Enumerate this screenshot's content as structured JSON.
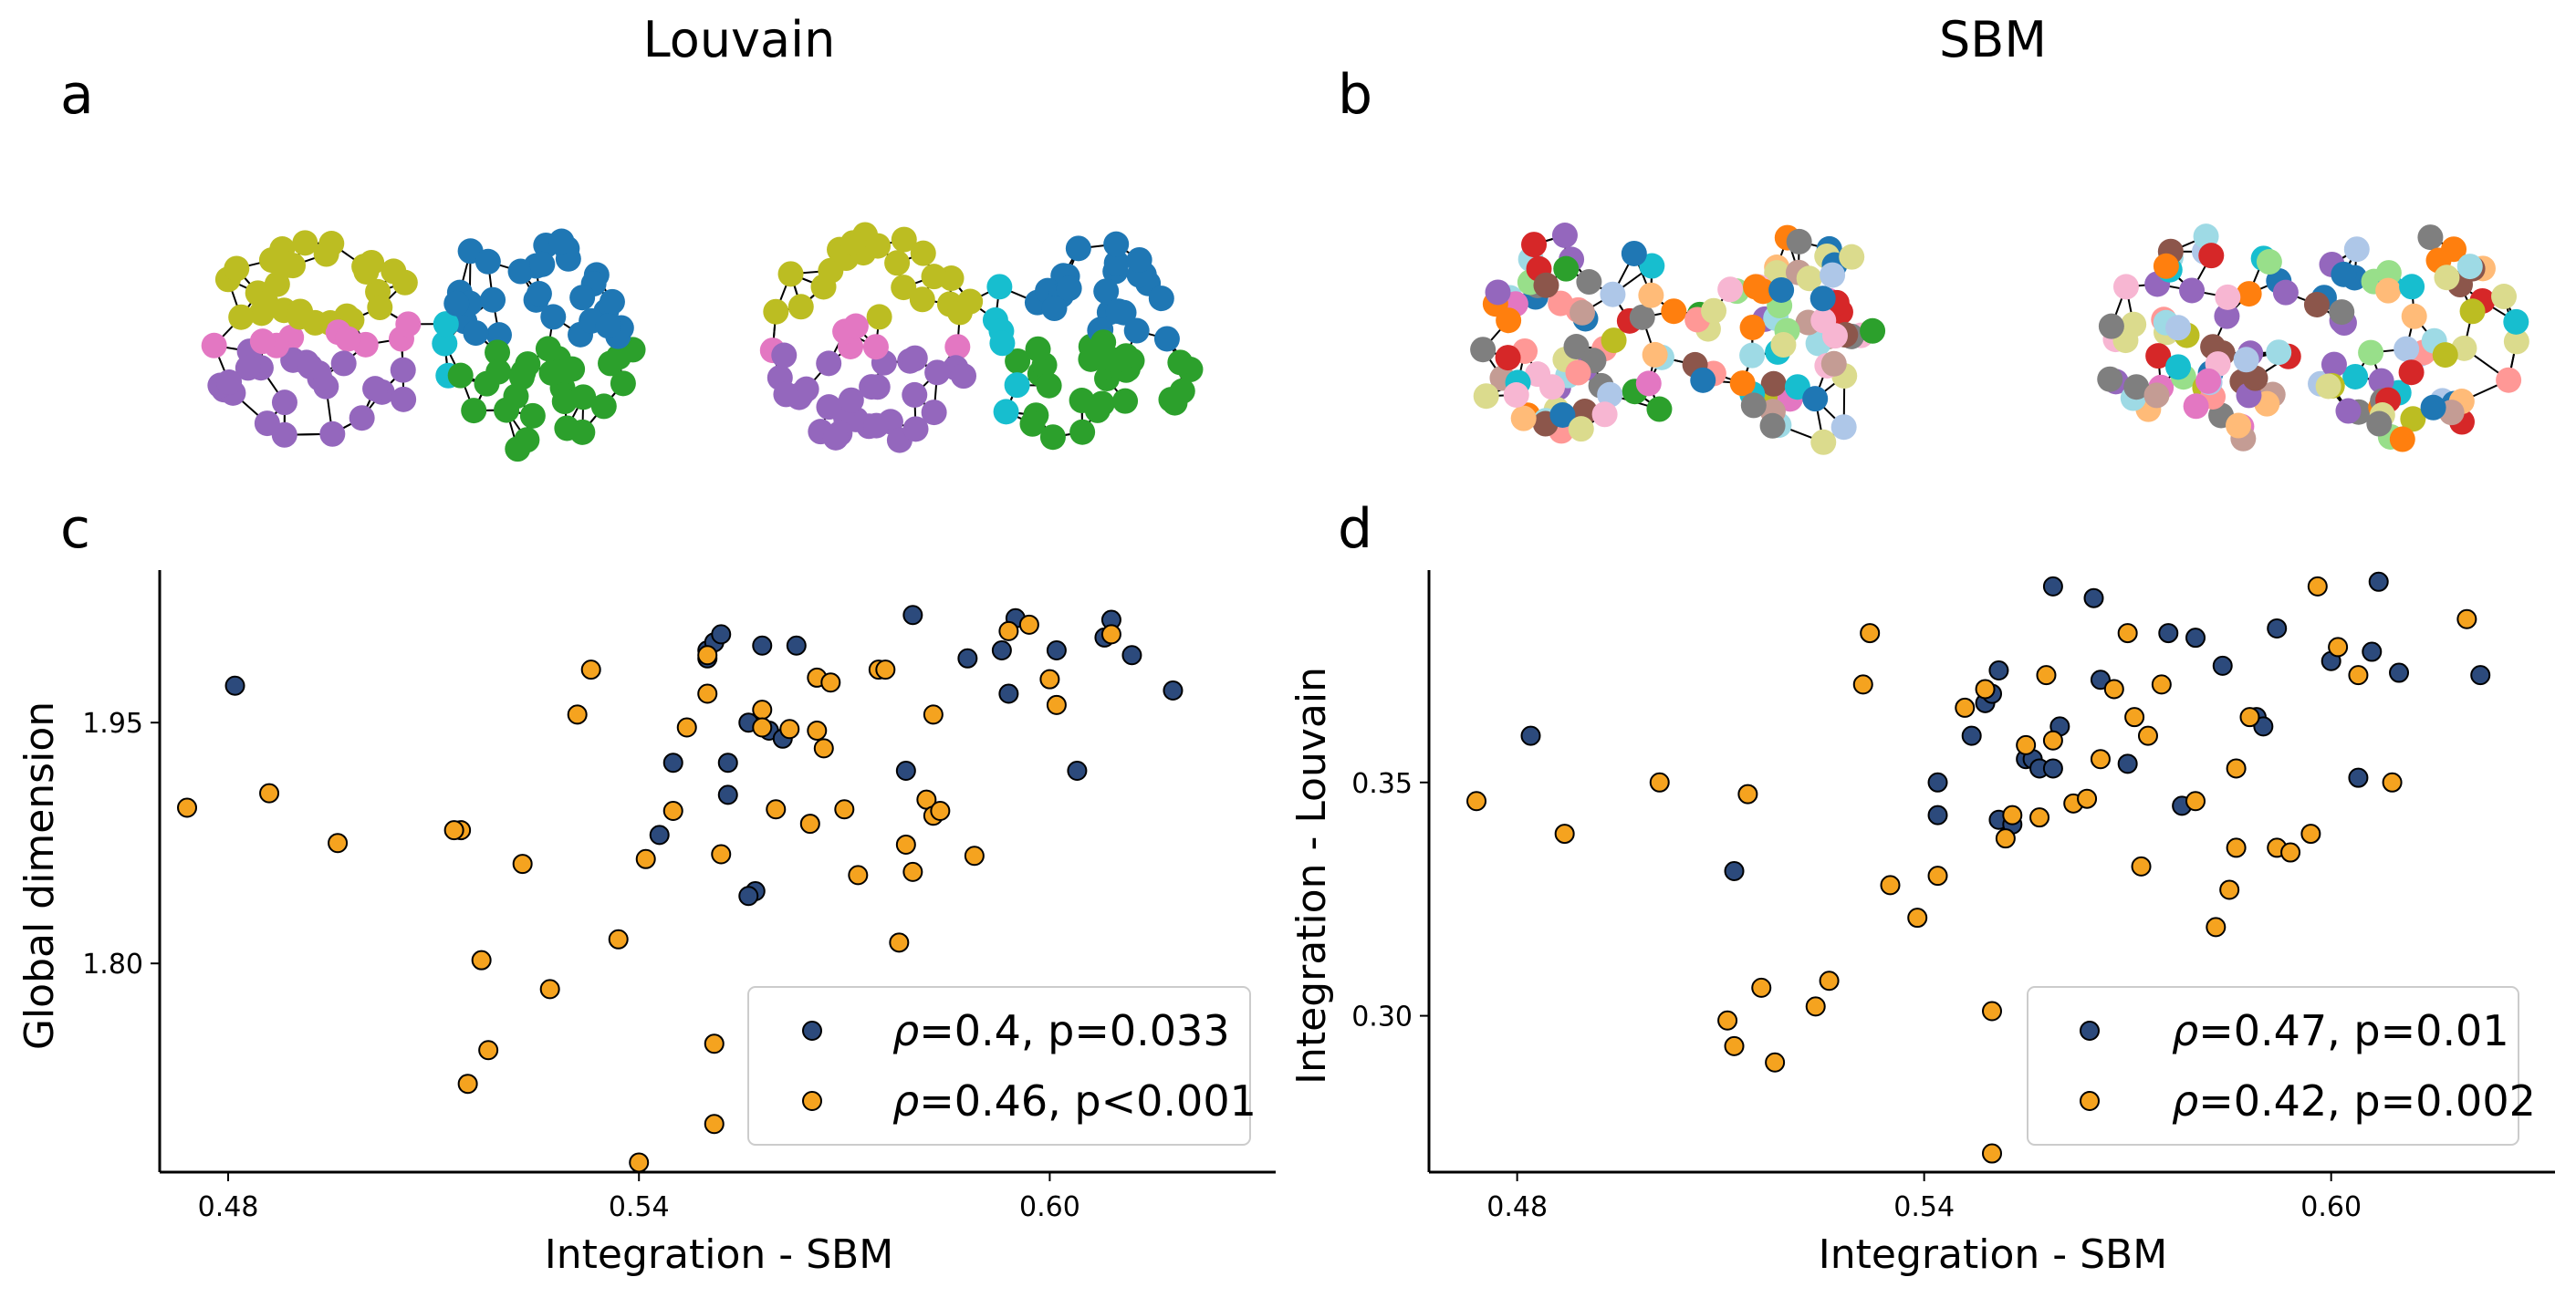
{
  "panel_titles": {
    "left": "Louvain",
    "right": "SBM"
  },
  "panel_letters": [
    "a",
    "b",
    "c",
    "d"
  ],
  "colors": {
    "dark_series": "#2c4a7c",
    "orange_series": "#f5a31f",
    "edge": "#000000",
    "community_louvain": [
      "#bcbd22",
      "#1f77b4",
      "#17becf",
      "#2ca02c",
      "#e377c2",
      "#9467bd"
    ],
    "community_sbm": [
      "#ff9896",
      "#bcbd22",
      "#1f77b4",
      "#2ca02c",
      "#d62728",
      "#aec7e8",
      "#17becf",
      "#7f7f7f",
      "#8c564b",
      "#c49c94",
      "#dbdb8d",
      "#ffbb78",
      "#ff7f0e",
      "#9467bd",
      "#98df8a",
      "#f7b6d2",
      "#9edae5",
      "#e377c2"
    ]
  },
  "chart_data": [
    {
      "type": "scatter",
      "panel": "c",
      "xlabel": "Integration - SBM",
      "ylabel": "Global dimension",
      "xticks": [
        0.48,
        0.54,
        0.6
      ],
      "xtick_labels": [
        "0.48",
        "0.54",
        "0.60"
      ],
      "yticks": [
        1.8,
        1.95
      ],
      "ytick_labels": [
        "1.80",
        "1.95"
      ],
      "xlim": [
        0.47,
        0.633
      ],
      "ylim": [
        1.67,
        2.045
      ],
      "legend_position": "lower-right",
      "series": [
        {
          "name": "ρ=0.4, p=0.033",
          "rho": "0.4",
          "p": "0.033",
          "color": "#2c4a7c",
          "points": [
            [
              0.481,
              1.973
            ],
            [
              0.55,
              1.99
            ],
            [
              0.55,
              1.995
            ],
            [
              0.551,
              2.0
            ],
            [
              0.552,
              2.005
            ],
            [
              0.558,
              1.998
            ],
            [
              0.563,
              1.998
            ],
            [
              0.556,
              1.95
            ],
            [
              0.559,
              1.945
            ],
            [
              0.561,
              1.94
            ],
            [
              0.553,
              1.925
            ],
            [
              0.545,
              1.925
            ],
            [
              0.543,
              1.88
            ],
            [
              0.553,
              1.905
            ],
            [
              0.557,
              1.845
            ],
            [
              0.556,
              1.842
            ],
            [
              0.58,
              2.017
            ],
            [
              0.588,
              1.99
            ],
            [
              0.593,
              1.995
            ],
            [
              0.594,
              1.968
            ],
            [
              0.595,
              2.015
            ],
            [
              0.601,
              1.995
            ],
            [
              0.608,
              2.003
            ],
            [
              0.609,
              2.014
            ],
            [
              0.612,
              1.992
            ],
            [
              0.618,
              1.97
            ],
            [
              0.604,
              1.92
            ],
            [
              0.579,
              1.92
            ]
          ]
        },
        {
          "name": "ρ=0.46, p<0.001",
          "rho": "0.46",
          "p": "<0.001",
          "color": "#f5a31f",
          "points": [
            [
              0.474,
              1.897
            ],
            [
              0.486,
              1.906
            ],
            [
              0.496,
              1.875
            ],
            [
              0.514,
              1.883
            ],
            [
              0.513,
              1.883
            ],
            [
              0.517,
              1.802
            ],
            [
              0.518,
              1.746
            ],
            [
              0.515,
              1.725
            ],
            [
              0.523,
              1.862
            ],
            [
              0.527,
              1.784
            ],
            [
              0.531,
              1.955
            ],
            [
              0.533,
              1.983
            ],
            [
              0.537,
              1.815
            ],
            [
              0.541,
              1.865
            ],
            [
              0.545,
              1.895
            ],
            [
              0.547,
              1.947
            ],
            [
              0.55,
              1.968
            ],
            [
              0.55,
              1.992
            ],
            [
              0.551,
              1.75
            ],
            [
              0.551,
              1.7
            ],
            [
              0.552,
              1.868
            ],
            [
              0.558,
              1.958
            ],
            [
              0.558,
              1.947
            ],
            [
              0.56,
              1.896
            ],
            [
              0.562,
              1.946
            ],
            [
              0.565,
              1.887
            ],
            [
              0.566,
              1.978
            ],
            [
              0.568,
              1.975
            ],
            [
              0.566,
              1.945
            ],
            [
              0.567,
              1.934
            ],
            [
              0.57,
              1.896
            ],
            [
              0.572,
              1.855
            ],
            [
              0.575,
              1.983
            ],
            [
              0.576,
              1.983
            ],
            [
              0.578,
              1.813
            ],
            [
              0.579,
              1.874
            ],
            [
              0.58,
              1.857
            ],
            [
              0.582,
              1.902
            ],
            [
              0.583,
              1.955
            ],
            [
              0.583,
              1.892
            ],
            [
              0.584,
              1.895
            ],
            [
              0.589,
              1.867
            ],
            [
              0.594,
              2.007
            ],
            [
              0.597,
              2.011
            ],
            [
              0.6,
              1.977
            ],
            [
              0.601,
              1.961
            ],
            [
              0.609,
              2.005
            ],
            [
              0.54,
              1.676
            ]
          ]
        }
      ]
    },
    {
      "type": "scatter",
      "panel": "d",
      "xlabel": "Integration - SBM",
      "ylabel": "Integration - Louvain",
      "xticks": [
        0.48,
        0.54,
        0.6
      ],
      "xtick_labels": [
        "0.48",
        "0.54",
        "0.60"
      ],
      "yticks": [
        0.3,
        0.35
      ],
      "ytick_labels": [
        "0.30",
        "0.35"
      ],
      "xlim": [
        0.467,
        0.633
      ],
      "ylim": [
        0.2665,
        0.3955
      ],
      "legend_position": "lower-right",
      "series": [
        {
          "name": "ρ=0.47, p=0.01",
          "rho": "0.47",
          "p": "0.01",
          "color": "#2c4a7c",
          "points": [
            [
              0.482,
              0.36
            ],
            [
              0.512,
              0.331
            ],
            [
              0.542,
              0.343
            ],
            [
              0.542,
              0.35
            ],
            [
              0.547,
              0.36
            ],
            [
              0.549,
              0.367
            ],
            [
              0.55,
              0.369
            ],
            [
              0.551,
              0.374
            ],
            [
              0.551,
              0.342
            ],
            [
              0.553,
              0.341
            ],
            [
              0.555,
              0.355
            ],
            [
              0.556,
              0.355
            ],
            [
              0.557,
              0.353
            ],
            [
              0.559,
              0.353
            ],
            [
              0.56,
              0.362
            ],
            [
              0.559,
              0.392
            ],
            [
              0.565,
              0.3895
            ],
            [
              0.566,
              0.372
            ],
            [
              0.57,
              0.354
            ],
            [
              0.576,
              0.382
            ],
            [
              0.578,
              0.345
            ],
            [
              0.58,
              0.381
            ],
            [
              0.584,
              0.375
            ],
            [
              0.589,
              0.364
            ],
            [
              0.59,
              0.362
            ],
            [
              0.592,
              0.383
            ],
            [
              0.6,
              0.376
            ],
            [
              0.604,
              0.351
            ],
            [
              0.606,
              0.378
            ],
            [
              0.61,
              0.3735
            ],
            [
              0.607,
              0.393
            ],
            [
              0.622,
              0.373
            ]
          ]
        },
        {
          "name": "ρ=0.42, p=0.002",
          "rho": "0.42",
          "p": "0.002",
          "color": "#f5a31f",
          "points": [
            [
              0.474,
              0.346
            ],
            [
              0.487,
              0.339
            ],
            [
              0.501,
              0.35
            ],
            [
              0.511,
              0.299
            ],
            [
              0.512,
              0.2935
            ],
            [
              0.514,
              0.3475
            ],
            [
              0.516,
              0.306
            ],
            [
              0.518,
              0.29
            ],
            [
              0.524,
              0.302
            ],
            [
              0.526,
              0.3075
            ],
            [
              0.531,
              0.371
            ],
            [
              0.532,
              0.382
            ],
            [
              0.535,
              0.328
            ],
            [
              0.539,
              0.321
            ],
            [
              0.542,
              0.33
            ],
            [
              0.546,
              0.366
            ],
            [
              0.549,
              0.37
            ],
            [
              0.55,
              0.301
            ],
            [
              0.55,
              0.2705
            ],
            [
              0.552,
              0.338
            ],
            [
              0.553,
              0.343
            ],
            [
              0.555,
              0.358
            ],
            [
              0.557,
              0.3425
            ],
            [
              0.559,
              0.359
            ],
            [
              0.558,
              0.373
            ],
            [
              0.562,
              0.3455
            ],
            [
              0.564,
              0.3465
            ],
            [
              0.566,
              0.355
            ],
            [
              0.568,
              0.37
            ],
            [
              0.57,
              0.382
            ],
            [
              0.571,
              0.364
            ],
            [
              0.572,
              0.332
            ],
            [
              0.573,
              0.36
            ],
            [
              0.575,
              0.371
            ],
            [
              0.58,
              0.346
            ],
            [
              0.583,
              0.319
            ],
            [
              0.585,
              0.327
            ],
            [
              0.586,
              0.336
            ],
            [
              0.586,
              0.353
            ],
            [
              0.588,
              0.364
            ],
            [
              0.592,
              0.336
            ],
            [
              0.594,
              0.335
            ],
            [
              0.597,
              0.339
            ],
            [
              0.598,
              0.392
            ],
            [
              0.601,
              0.379
            ],
            [
              0.604,
              0.373
            ],
            [
              0.609,
              0.35
            ],
            [
              0.62,
              0.385
            ]
          ]
        }
      ]
    }
  ]
}
